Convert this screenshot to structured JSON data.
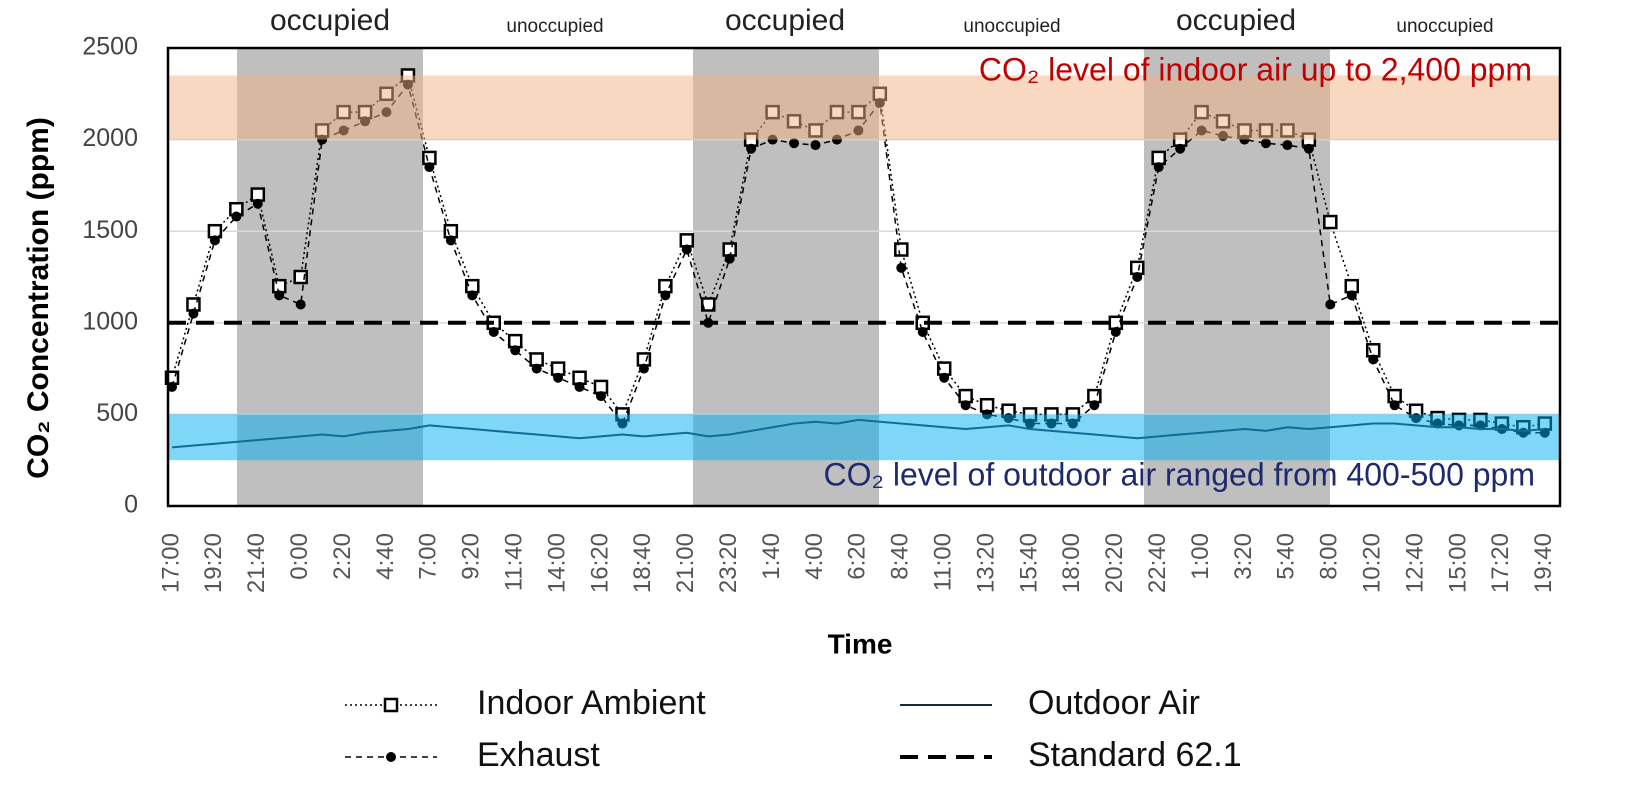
{
  "chart_data": {
    "type": "line",
    "ylabel": "CO₂ Concentration (ppm)",
    "xlabel": "Time",
    "period_labels": [
      "occupied",
      "unoccupied",
      "occupied",
      "unoccupied",
      "occupied",
      "unoccupied"
    ],
    "categories": [
      "17:00",
      null,
      "19:20",
      null,
      "21:40",
      null,
      "0:00",
      null,
      "2:20",
      null,
      "4:40",
      null,
      "7:00",
      null,
      "9:20",
      null,
      "11:40",
      null,
      "14:00",
      null,
      "16:20",
      null,
      "18:40",
      null,
      "21:00",
      null,
      "23:20",
      null,
      "1:40",
      null,
      "4:00",
      null,
      "6:20",
      null,
      "8:40",
      null,
      "11:00",
      null,
      "13:20",
      null,
      "15:40",
      null,
      "18:00",
      null,
      "20:20",
      null,
      "22:40",
      null,
      "1:00",
      null,
      "3:20",
      null,
      "5:40",
      null,
      "8:00",
      null,
      "10:20",
      null,
      "12:40",
      null,
      "15:00",
      null,
      "17:20",
      null,
      "19:40"
    ],
    "series": [
      {
        "name": "Indoor Ambient",
        "color": "#000000",
        "marker": "square",
        "line": "dotted",
        "values": [
          700,
          1100,
          1500,
          1620,
          1700,
          1200,
          1250,
          2050,
          2150,
          2150,
          2250,
          2350,
          1900,
          1500,
          1200,
          1000,
          900,
          800,
          750,
          700,
          650,
          500,
          800,
          1200,
          1450,
          1100,
          1400,
          2000,
          2150,
          2100,
          2050,
          2150,
          2150,
          2250,
          1400,
          1000,
          750,
          600,
          550,
          520,
          500,
          500,
          500,
          600,
          1000,
          1300,
          1900,
          2000,
          2150,
          2100,
          2050,
          2050,
          2050,
          2000,
          1550,
          1200,
          850,
          600,
          520,
          480,
          470,
          470,
          450,
          430,
          450
        ]
      },
      {
        "name": "Exhaust",
        "color": "#000000",
        "marker": "dot",
        "line": "dashed",
        "values": [
          650,
          1050,
          1450,
          1580,
          1650,
          1150,
          1100,
          2000,
          2050,
          2100,
          2150,
          2300,
          1850,
          1450,
          1150,
          950,
          850,
          750,
          700,
          650,
          600,
          450,
          750,
          1150,
          1400,
          1000,
          1350,
          1950,
          2000,
          1980,
          1970,
          2000,
          2050,
          2200,
          1300,
          950,
          700,
          550,
          500,
          480,
          450,
          450,
          450,
          550,
          950,
          1250,
          1850,
          1950,
          2050,
          2020,
          2000,
          1980,
          1970,
          1950,
          1100,
          1150,
          800,
          550,
          480,
          450,
          440,
          440,
          420,
          400,
          400
        ]
      },
      {
        "name": "Outdoor Air",
        "color": "#1a2a3a",
        "marker": "none",
        "line": "solid",
        "values": [
          320,
          330,
          340,
          350,
          360,
          370,
          380,
          390,
          380,
          400,
          410,
          420,
          440,
          430,
          420,
          410,
          400,
          390,
          380,
          370,
          380,
          390,
          380,
          390,
          400,
          380,
          390,
          410,
          430,
          450,
          460,
          450,
          470,
          460,
          450,
          440,
          430,
          420,
          430,
          440,
          420,
          410,
          400,
          390,
          380,
          370,
          380,
          390,
          400,
          410,
          420,
          410,
          430,
          420,
          430,
          440,
          450,
          450,
          440,
          430,
          430,
          420,
          420,
          410,
          420
        ]
      }
    ],
    "reference_lines": [
      {
        "name": "Standard 62.1",
        "value": 1000,
        "color": "#000000",
        "line": "dashed"
      }
    ],
    "bands": [
      {
        "range": [
          2000,
          2350
        ],
        "color": "#f4b183"
      },
      {
        "range": [
          250,
          500
        ],
        "color": "#00b0f0"
      }
    ],
    "annotations": [
      {
        "text": "CO₂ level of indoor air up to 2,400 ppm",
        "color": "#c00000"
      },
      {
        "text": "CO₂ level of outdoor air ranged from  400-500 ppm",
        "color": "#1f2a6e"
      }
    ],
    "ylim": [
      0,
      2500
    ],
    "yticks": [
      0,
      500,
      1000,
      1500,
      2000,
      2500
    ],
    "grid": true
  }
}
